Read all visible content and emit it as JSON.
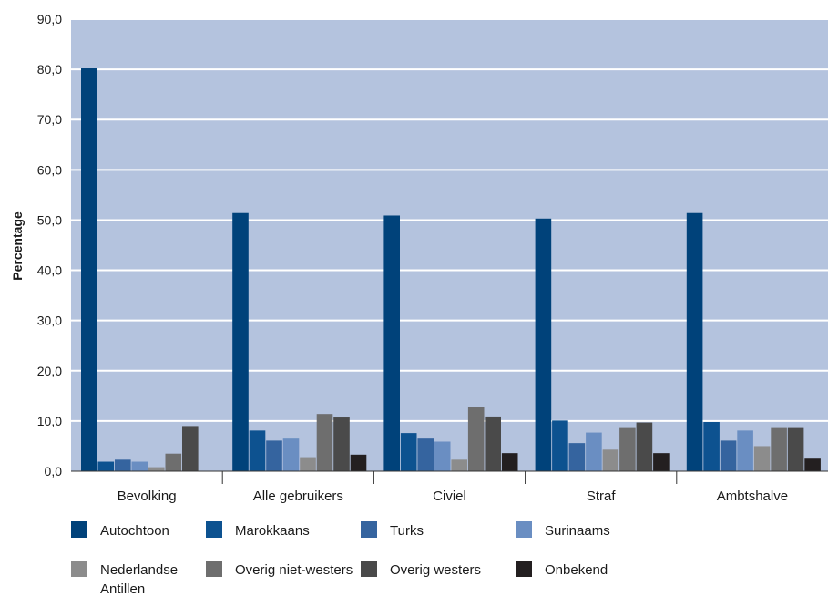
{
  "chart_data": {
    "type": "bar",
    "title": "",
    "xlabel": "",
    "ylabel": "Percentage",
    "ylim": [
      0,
      90
    ],
    "yticks": [
      "0,0",
      "10,0",
      "20,0",
      "30,0",
      "40,0",
      "50,0",
      "60,0",
      "70,0",
      "80,0",
      "90,0"
    ],
    "grid": true,
    "legend_position": "bottom",
    "categories": [
      "Bevolking",
      "Alle gebruikers",
      "Civiel",
      "Straf",
      "Ambtshalve"
    ],
    "series": [
      {
        "name": "Autochtoon",
        "color": "#00427a",
        "values": [
          80.2,
          51.4,
          50.9,
          50.3,
          51.4
        ]
      },
      {
        "name": "Marokkaans",
        "color": "#0d5290",
        "values": [
          1.9,
          8.1,
          7.6,
          10.1,
          9.8
        ]
      },
      {
        "name": "Turks",
        "color": "#35649f",
        "values": [
          2.3,
          6.1,
          6.5,
          5.6,
          6.1
        ]
      },
      {
        "name": "Surinaams",
        "color": "#6a8ec2",
        "values": [
          1.9,
          6.5,
          5.9,
          7.7,
          8.1
        ]
      },
      {
        "name": "Nederlandse Antillen",
        "color": "#8c8c8c",
        "values": [
          0.8,
          2.8,
          2.3,
          4.3,
          5.0
        ]
      },
      {
        "name": "Overig niet-westers",
        "color": "#6e6e6e",
        "values": [
          3.5,
          11.4,
          12.7,
          8.6,
          8.6
        ]
      },
      {
        "name": "Overig westers",
        "color": "#4a4a4a",
        "values": [
          9.0,
          10.7,
          10.9,
          9.7,
          8.6
        ]
      },
      {
        "name": "Onbekend",
        "color": "#231f20",
        "values": [
          0.0,
          3.3,
          3.6,
          3.6,
          2.5
        ]
      }
    ],
    "legend": [
      {
        "lines": [
          "Autochtoon"
        ]
      },
      {
        "lines": [
          "Marokkaans"
        ]
      },
      {
        "lines": [
          "Turks"
        ]
      },
      {
        "lines": [
          "Surinaams"
        ]
      },
      {
        "lines": [
          "Nederlandse",
          "Antillen"
        ]
      },
      {
        "lines": [
          "Overig niet-westers"
        ]
      },
      {
        "lines": [
          "Overig westers"
        ]
      },
      {
        "lines": [
          "Onbekend"
        ]
      }
    ],
    "colors": {
      "plot_background": "#b4c3de",
      "gridline": "#ffffff",
      "axis": "#333333"
    }
  }
}
